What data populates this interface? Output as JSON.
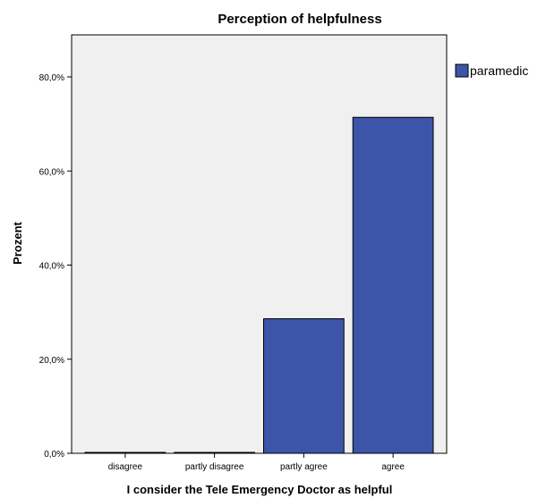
{
  "chart_data": {
    "type": "bar",
    "title": "Perception of helpfulness",
    "xlabel": "I consider the Tele Emergency Doctor as helpful",
    "ylabel": "Prozent",
    "categories": [
      "disagree",
      "partly disagree",
      "partly agree",
      "agree"
    ],
    "series": [
      {
        "name": "paramedic",
        "values": [
          0.0,
          0.0,
          28.6,
          71.4
        ],
        "color": "#3d55a8"
      }
    ],
    "ylim": [
      0,
      83
    ],
    "yticks": [
      0,
      20,
      40,
      60,
      80
    ],
    "ytick_labels": [
      "0,0%",
      "20,0%",
      "40,0%",
      "60,0%",
      "80,0%"
    ],
    "grid": false,
    "legend": "right",
    "plot_background": "#f0f0f0"
  }
}
